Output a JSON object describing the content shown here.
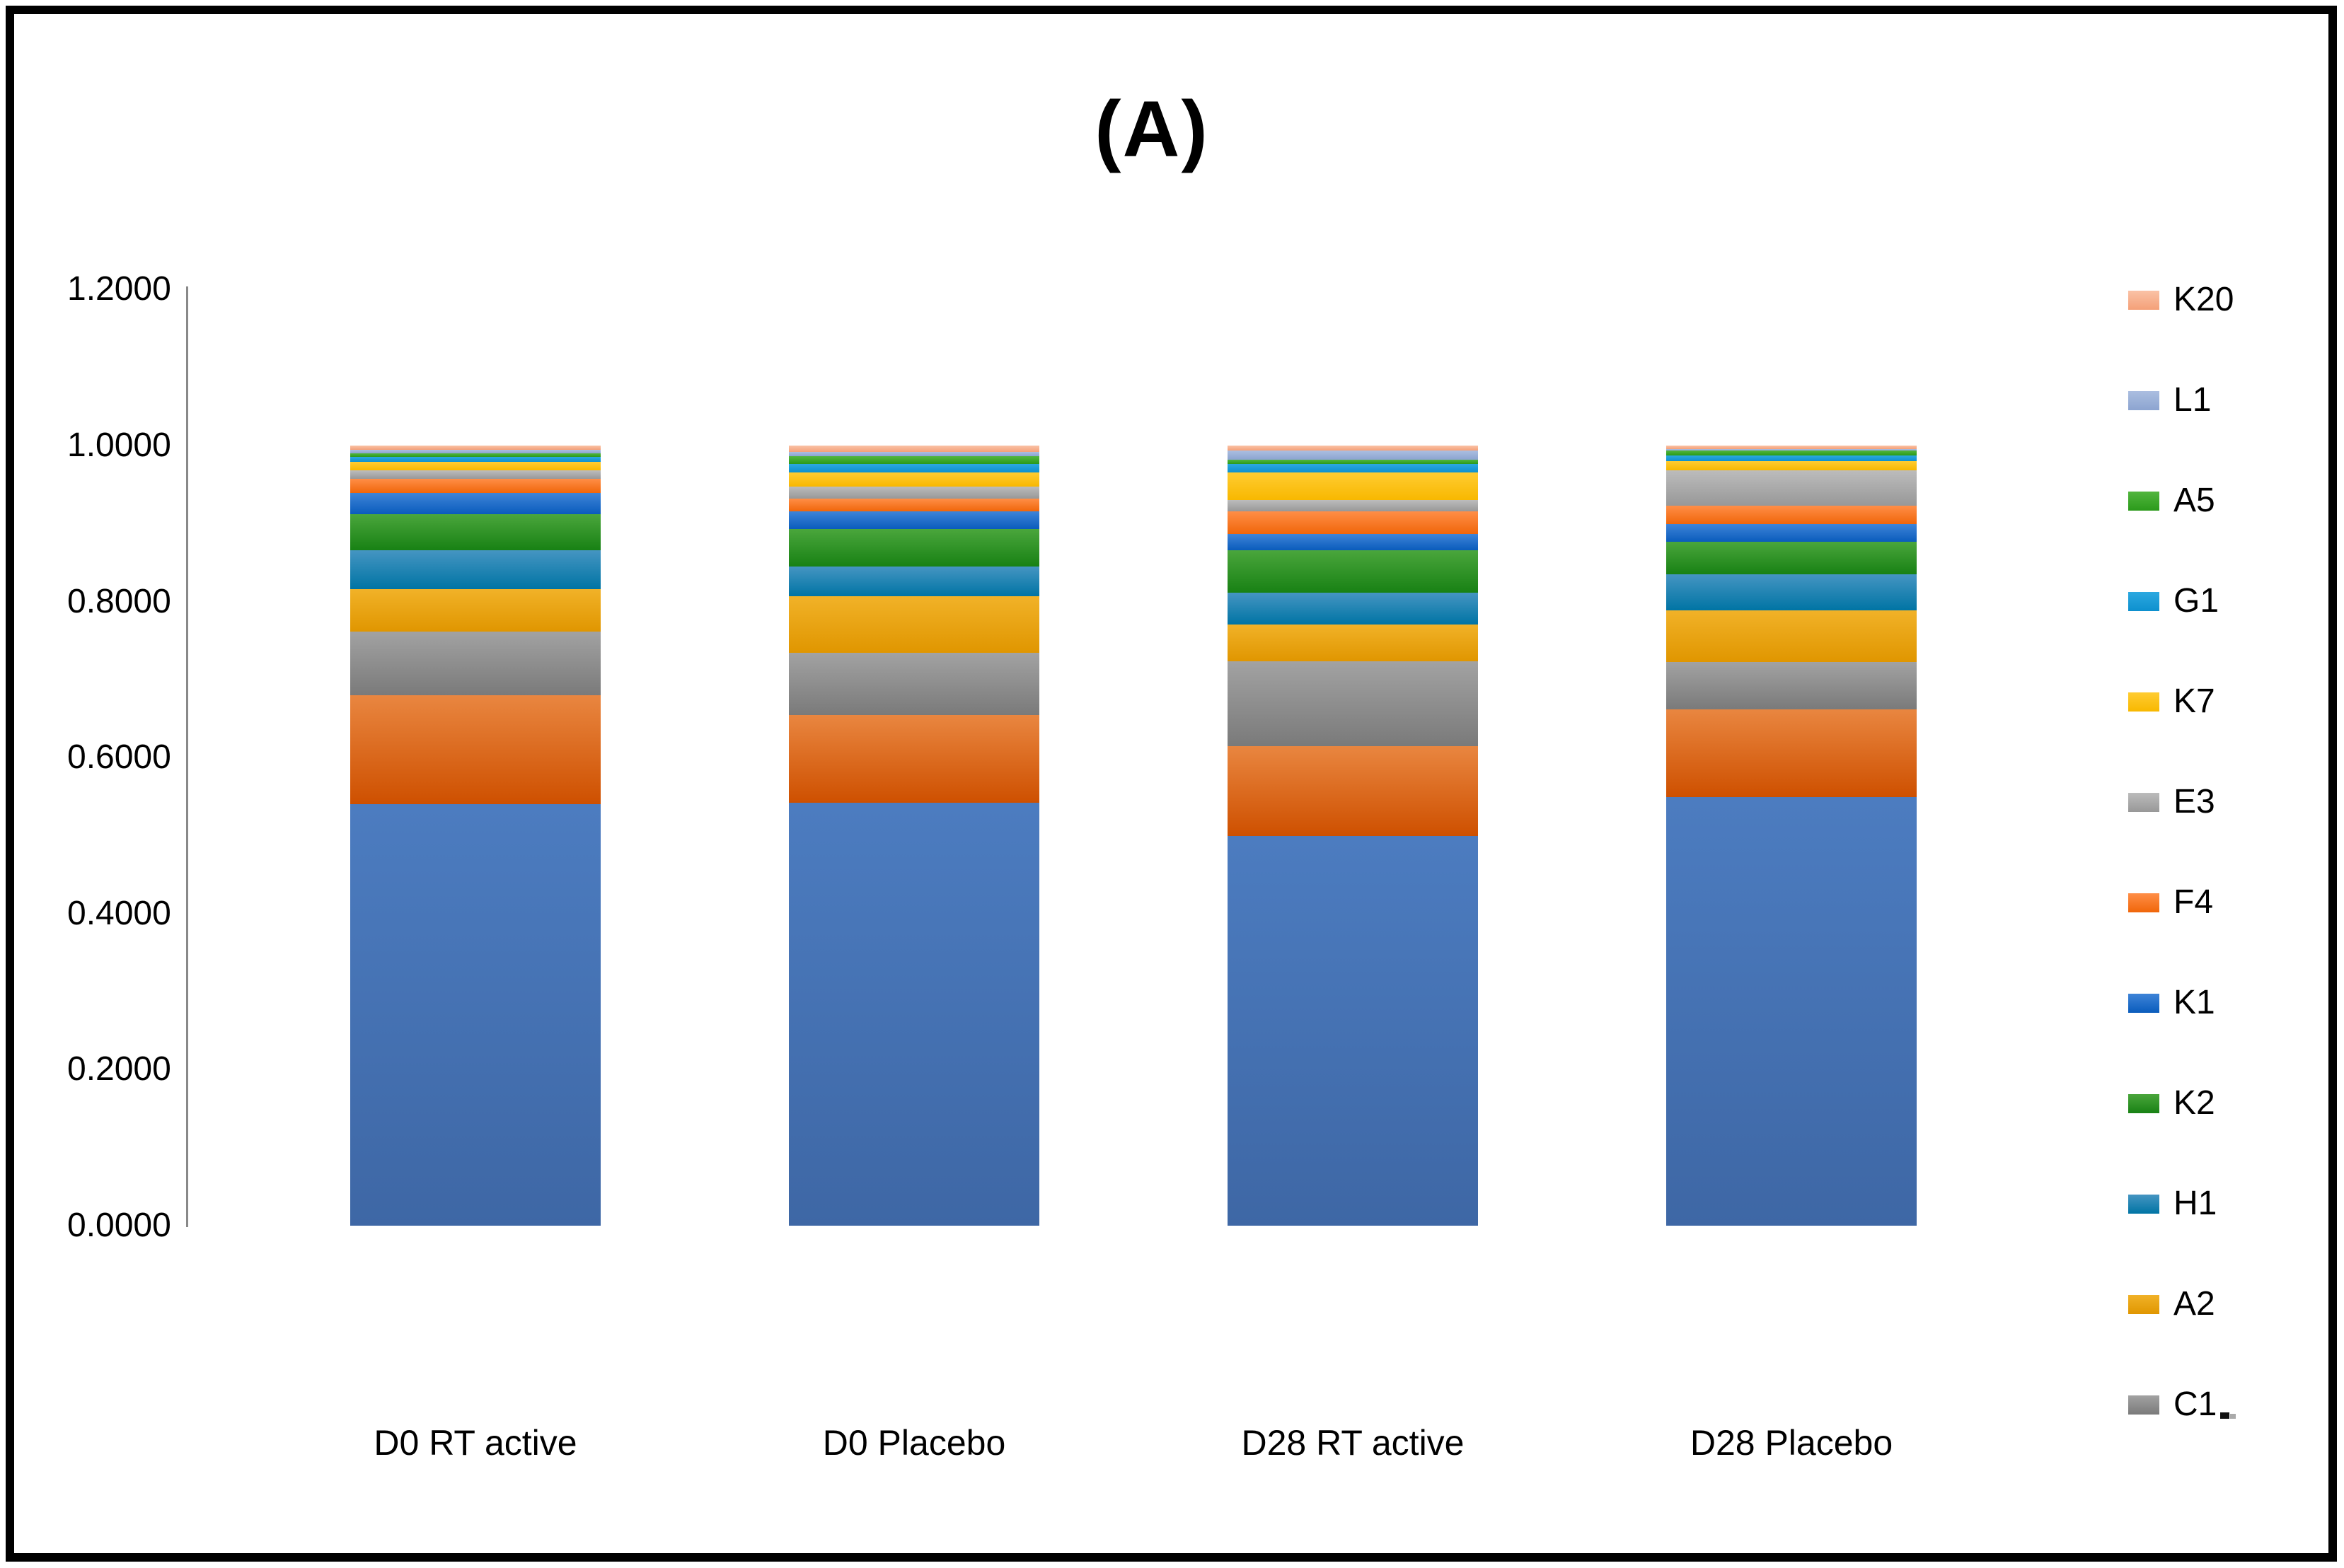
{
  "chart_data": {
    "type": "bar",
    "subtype": "stacked-vertical",
    "title": "(A)",
    "categories": [
      "D0 RT active",
      "D0 Placebo",
      "D28 RT active",
      "D28 Placebo"
    ],
    "y_axis": {
      "min": 0.0,
      "max": 1.2,
      "step": 0.2,
      "tick_labels": [
        "0.0000",
        "0.2000",
        "0.4000",
        "0.6000",
        "0.8000",
        "1.0000",
        "1.2000"
      ],
      "gridlines": false
    },
    "legend": {
      "position": "right",
      "entries_top_to_bottom": [
        "K20",
        "L1",
        "A5",
        "G1",
        "K7",
        "E3",
        "F4",
        "K1",
        "K2",
        "H1",
        "A2",
        "C1"
      ]
    },
    "series_note": "series listed bottom-to-top of stack; first two segments are visible in bars but their legend entries are cut off at the screenshot edge",
    "series": [
      {
        "name": "",
        "id": "unlabeled-blue-base",
        "in_legend": false,
        "color_top": "#4C7CC0",
        "color_bottom": "#3E67A5",
        "values": [
          0.5405,
          0.5421,
          0.4996,
          0.5495
        ]
      },
      {
        "name": "",
        "id": "unlabeled-orange-base",
        "in_legend": false,
        "color_top": "#E98640",
        "color_bottom": "#CE5000",
        "values": [
          0.1396,
          0.1124,
          0.1151,
          0.1124
        ]
      },
      {
        "name": "C1",
        "id": "C1",
        "in_legend": true,
        "color_top": "#A2A2A2",
        "color_bottom": "#7A7A7A",
        "values": [
          0.0816,
          0.0798,
          0.1088,
          0.0607
        ]
      },
      {
        "name": "A2",
        "id": "A2",
        "in_legend": true,
        "color_top": "#F1B228",
        "color_bottom": "#E09600",
        "values": [
          0.0544,
          0.0725,
          0.0471,
          0.0662
        ]
      },
      {
        "name": "H1",
        "id": "H1",
        "in_legend": true,
        "color_top": "#4595C2",
        "color_bottom": "#0074A4",
        "values": [
          0.0499,
          0.0381,
          0.0408,
          0.0462
        ]
      },
      {
        "name": "K2",
        "id": "K2",
        "in_legend": true,
        "color_top": "#4AA63C",
        "color_bottom": "#188114",
        "values": [
          0.0462,
          0.0481,
          0.0544,
          0.0417
        ]
      },
      {
        "name": "K1",
        "id": "K1",
        "in_legend": true,
        "color_top": "#3E84D8",
        "color_bottom": "#0A5CBC",
        "values": [
          0.0272,
          0.0227,
          0.0209,
          0.0227
        ]
      },
      {
        "name": "F4",
        "id": "F4",
        "in_legend": true,
        "color_top": "#FF8E47",
        "color_bottom": "#F0660A",
        "values": [
          0.0181,
          0.0163,
          0.029,
          0.0236
        ]
      },
      {
        "name": "E3",
        "id": "E3",
        "in_legend": true,
        "color_top": "#BCBCBC",
        "color_bottom": "#989898",
        "values": [
          0.0109,
          0.0154,
          0.0145,
          0.0453
        ]
      },
      {
        "name": "K7",
        "id": "K7",
        "in_legend": true,
        "color_top": "#FFCC32",
        "color_bottom": "#F8B800",
        "values": [
          0.0109,
          0.0181,
          0.0354,
          0.0118
        ]
      },
      {
        "name": "G1",
        "id": "G1",
        "in_legend": true,
        "color_top": "#2CA8E0",
        "color_bottom": "#0D90CE",
        "values": [
          0.0063,
          0.0109,
          0.0109,
          0.0073
        ]
      },
      {
        "name": "A5",
        "id": "A5",
        "in_legend": true,
        "color_top": "#52B63E",
        "color_bottom": "#2B9A1B",
        "values": [
          0.0045,
          0.01,
          0.0054,
          0.0063
        ]
      },
      {
        "name": "L1",
        "id": "L1",
        "in_legend": true,
        "color_top": "#ABBEE0",
        "color_bottom": "#8CA4D0",
        "values": [
          0.0045,
          0.0054,
          0.0118,
          0.0018
        ]
      },
      {
        "name": "K20",
        "id": "K20",
        "in_legend": true,
        "color_top": "#FAC2A6",
        "color_bottom": "#F4A078",
        "values": [
          0.0054,
          0.0082,
          0.0063,
          0.0045
        ]
      }
    ]
  },
  "frame_color": "#000000",
  "axis_line_color": "#898989"
}
